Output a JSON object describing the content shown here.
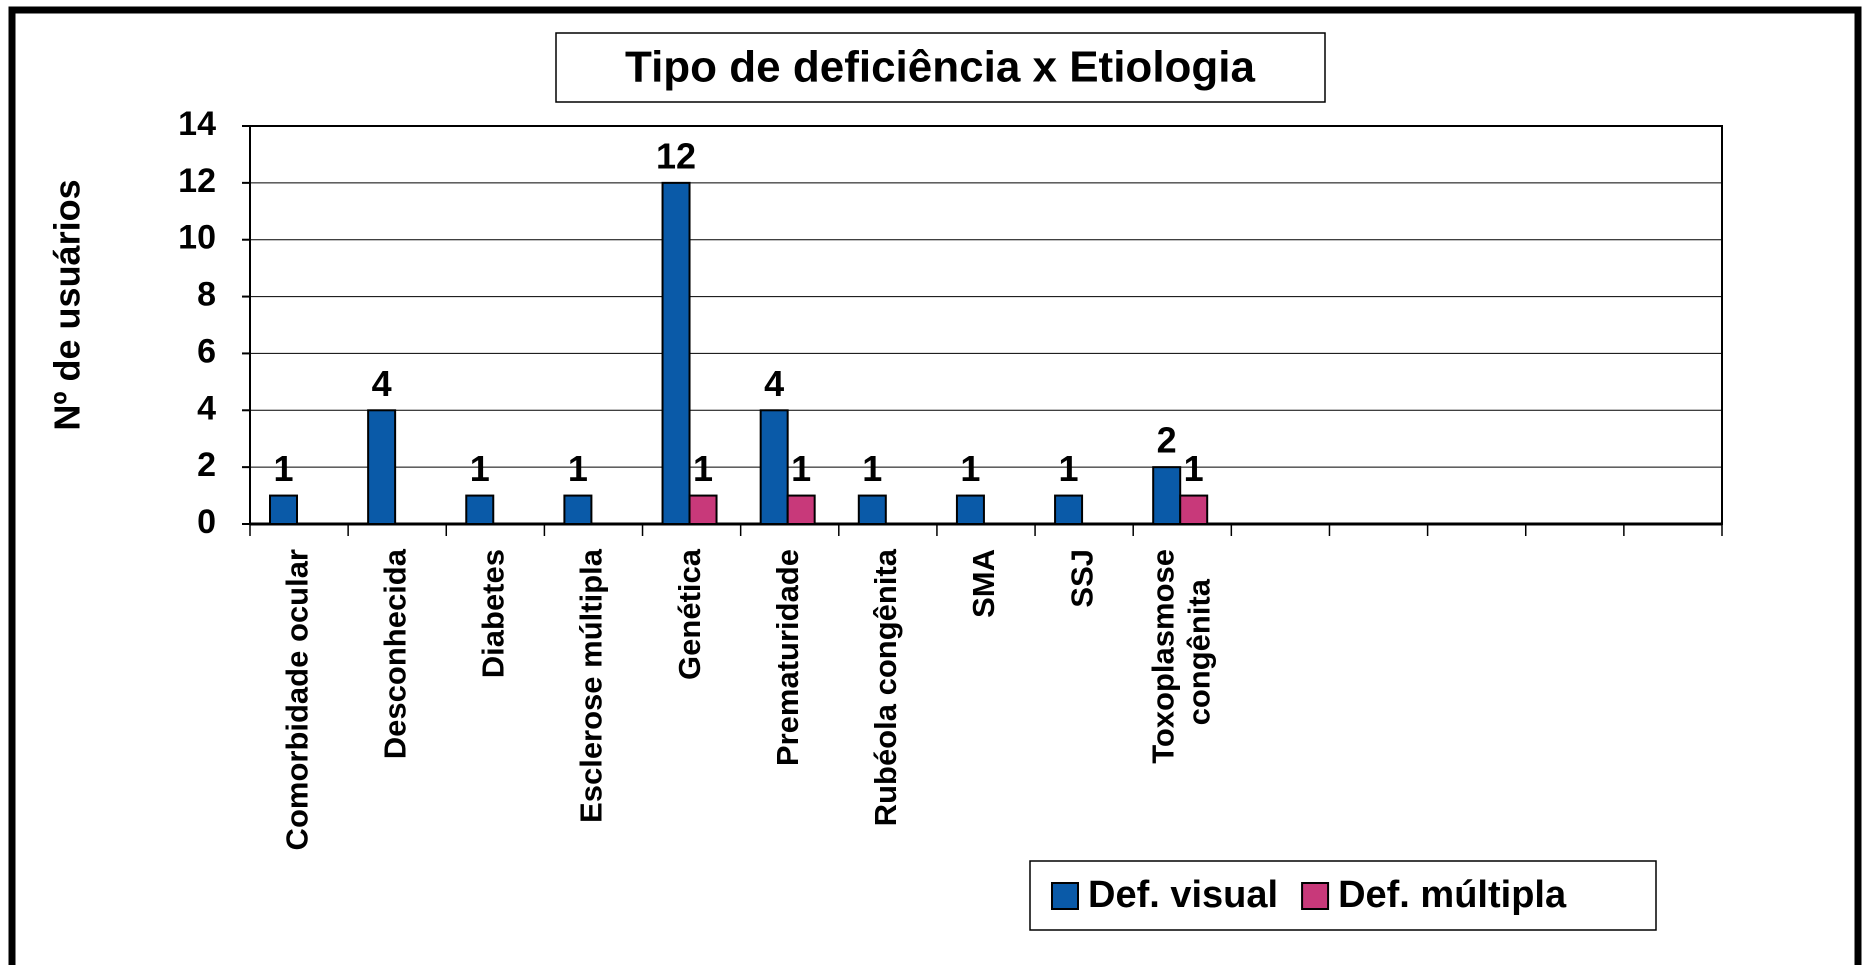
{
  "chart_data": {
    "type": "bar",
    "title": "Tipo de deficiência x Etiologia",
    "y_axis_label": "Nº de usuários",
    "categories": [
      "Comorbidade ocular",
      "Desconhecida",
      "Diabetes",
      "Esclerose múltipla",
      "Genética",
      "Prematuridade",
      "Rubéola congênita",
      "SMA",
      "SSJ",
      "Toxoplasmose congênita",
      null,
      null,
      null,
      null,
      null
    ],
    "series": [
      {
        "name": "Def. visual",
        "color": "#0a5aa8",
        "values": [
          1,
          4,
          1,
          1,
          12,
          4,
          1,
          1,
          1,
          2,
          null,
          null,
          null,
          null,
          null
        ]
      },
      {
        "name": "Def. múltipla",
        "color": "#c8397a",
        "values": [
          null,
          null,
          null,
          null,
          1,
          1,
          null,
          null,
          null,
          1,
          null,
          null,
          null,
          null,
          null
        ]
      }
    ],
    "ylim": [
      0,
      14
    ],
    "yticks": [
      0,
      2,
      4,
      6,
      8,
      10,
      12,
      14
    ],
    "grid": true,
    "legend": "bottom-right"
  }
}
